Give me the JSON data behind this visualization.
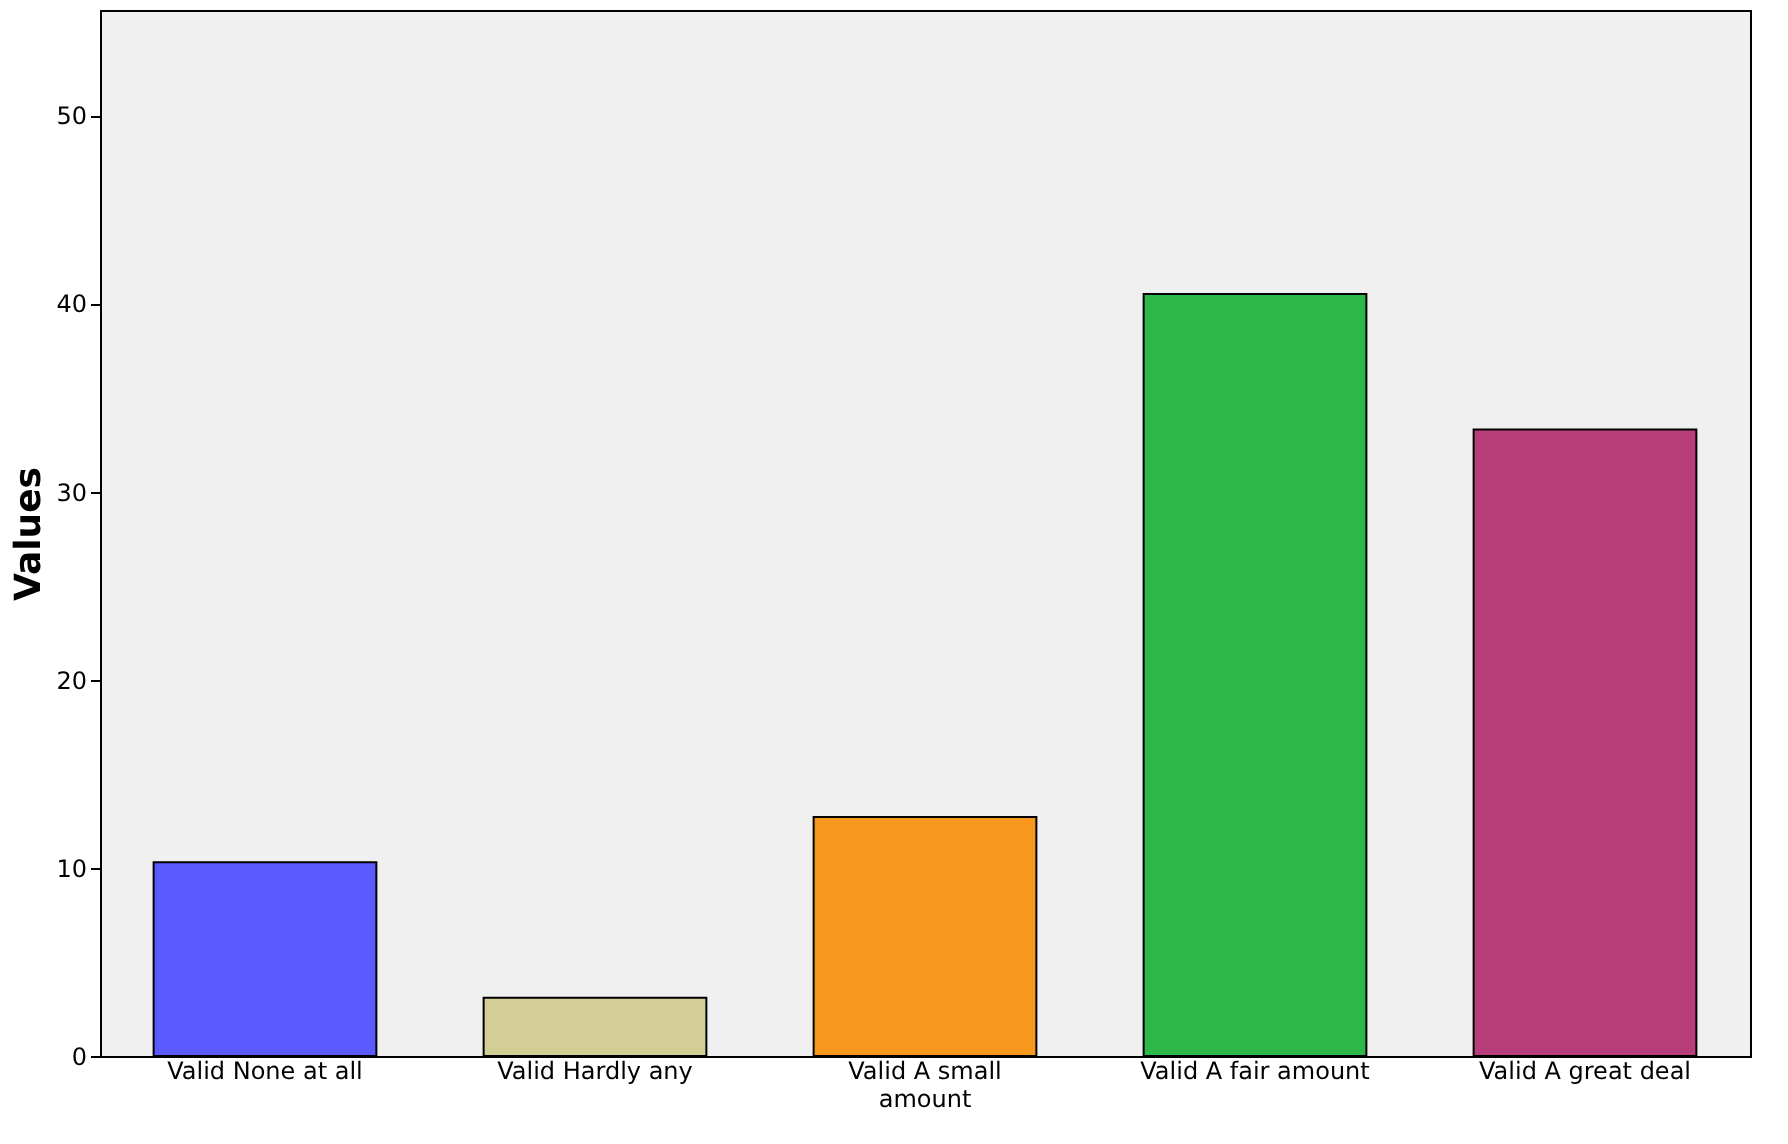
{
  "chart_data": {
    "type": "bar",
    "ylabel": "Values",
    "categories": [
      "Valid None at all",
      "Valid Hardly any",
      "Valid A small amount",
      "Valid A fair amount",
      "Valid A great deal"
    ],
    "values": [
      10.3,
      3.1,
      12.7,
      40.5,
      33.3
    ],
    "colors": [
      "#5a5aff",
      "#d3ce96",
      "#f7971e",
      "#2fb84a",
      "#b73e7b"
    ],
    "ylim": [
      0,
      55.6
    ],
    "yticks": [
      0,
      10,
      20,
      30,
      40,
      50
    ],
    "grid": false
  }
}
